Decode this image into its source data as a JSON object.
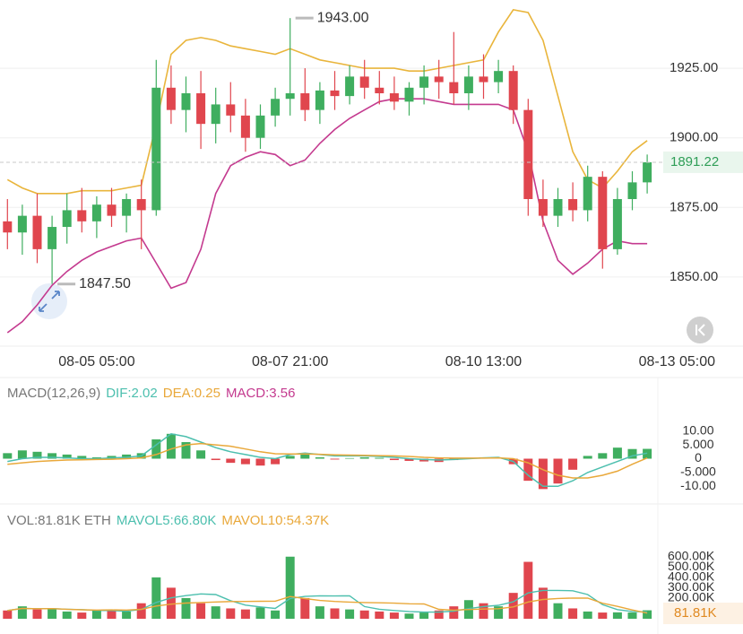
{
  "chart_data": [
    {
      "type": "candlestick",
      "categories": [
        null,
        null,
        null,
        null,
        null,
        null,
        "08-05 05:00",
        null,
        null,
        null,
        null,
        null,
        null,
        null,
        null,
        null,
        null,
        null,
        null,
        "08-07 21:00",
        null,
        null,
        null,
        null,
        null,
        null,
        null,
        null,
        null,
        null,
        null,
        null,
        "08-10 13:00",
        null,
        null,
        null,
        null,
        null,
        null,
        null,
        null,
        null,
        null,
        null,
        null,
        "08-13 05:00"
      ],
      "open": [
        1870,
        1866,
        1872,
        1860,
        1868,
        1874,
        1870,
        1876,
        1872,
        1878,
        1874,
        1918,
        1910,
        1916,
        1905,
        1912,
        1908,
        1900,
        1908,
        1914,
        1916,
        1910,
        1917,
        1915,
        1922,
        1918,
        1916,
        1913,
        1918,
        1922,
        1920,
        1916,
        1922,
        1920,
        1924,
        1910,
        1878,
        1872,
        1878,
        1874,
        1886,
        1860,
        1878,
        1884,
        null,
        null
      ],
      "high": [
        1878,
        1876,
        1880,
        1872,
        1880,
        1882,
        1879,
        1882,
        1880,
        1885,
        1928,
        1926,
        1922,
        1924,
        1918,
        1920,
        1914,
        1912,
        1918,
        1943,
        1925,
        1920,
        1924,
        1926,
        1928,
        1924,
        1922,
        1920,
        1926,
        1928,
        1938,
        1926,
        1930,
        1928,
        1926,
        1914,
        1885,
        1882,
        1884,
        1890,
        1888,
        1882,
        1888,
        1894,
        null,
        null
      ],
      "low": [
        1860,
        1858,
        1855,
        1847.5,
        1862,
        1866,
        1864,
        1868,
        1866,
        1860,
        1872,
        1905,
        1902,
        1896,
        1898,
        1902,
        1895,
        1896,
        1904,
        1908,
        1906,
        1905,
        1910,
        1912,
        1914,
        1912,
        1910,
        1908,
        1912,
        1914,
        1912,
        1910,
        1914,
        1916,
        1905,
        1872,
        1868,
        1868,
        1870,
        1870,
        1853,
        1858,
        1874,
        1880,
        null,
        null
      ],
      "close": [
        1866,
        1872,
        1860,
        1868,
        1874,
        1870,
        1876,
        1872,
        1878,
        1874,
        1918,
        1910,
        1916,
        1905,
        1912,
        1908,
        1900,
        1908,
        1914,
        1916,
        1910,
        1917,
        1915,
        1922,
        1918,
        1916,
        1913,
        1918,
        1922,
        1920,
        1916,
        1922,
        1920,
        1924,
        1910,
        1878,
        1872,
        1878,
        1874,
        1886,
        1860,
        1878,
        1884,
        1891.22,
        null,
        null
      ],
      "up_color": "#3fae5f",
      "down_color": "#e0464e",
      "bands": [
        {
          "color": "#e9b53c",
          "values": [
            1885,
            1882,
            1880,
            1880,
            1880,
            1881,
            1881,
            1881,
            1882,
            1883,
            1905,
            1930,
            1935,
            1936,
            1935,
            1933,
            1932,
            1931,
            1930,
            1932,
            1930,
            1928,
            1927,
            1926,
            1925,
            1925,
            1925,
            1924,
            1924,
            1925,
            1926,
            1927,
            1928,
            1938,
            1946,
            1945,
            1935,
            1915,
            1895,
            1885,
            1882,
            1888,
            1895,
            1899,
            null,
            null
          ]
        },
        {
          "color": "#c43a8f",
          "values": [
            1830,
            1834,
            1840,
            1847,
            1852,
            1856,
            1859,
            1861,
            1863,
            1864,
            1855,
            1846,
            1848,
            1860,
            1880,
            1890,
            1893,
            1895,
            1894,
            1890,
            1892,
            1898,
            1903,
            1907,
            1910,
            1913,
            1914,
            1914,
            1914,
            1913,
            1912,
            1912,
            1912,
            1912,
            1910,
            1895,
            1870,
            1856,
            1851,
            1855,
            1860,
            1863,
            1862,
            1862,
            null,
            null
          ]
        }
      ],
      "ylim": [
        1825.5,
        1949.5
      ],
      "yticks": [
        {
          "value": 1850,
          "label": "1850.00"
        },
        {
          "value": 1875,
          "label": "1875.00"
        },
        {
          "value": 1900,
          "label": "1900.00"
        },
        {
          "value": 1925,
          "label": "1925.00"
        }
      ],
      "grid": true,
      "high_mark": {
        "value": 1943,
        "label": "1943.00"
      },
      "low_mark": {
        "value": 1847.5,
        "label": "1847.50"
      },
      "last_price": {
        "value": 1891.22,
        "label": "1891.22"
      }
    },
    {
      "type": "macd",
      "title": "MACD(12,26,9)",
      "series": [
        {
          "name": "DIF:2.02",
          "color": "#4cbfae",
          "values": [
            -1,
            0,
            0.5,
            0.5,
            0.3,
            0,
            0,
            0.3,
            0.5,
            1,
            5,
            9,
            8,
            6,
            4,
            2.5,
            1.5,
            0.5,
            0,
            1.5,
            2,
            1.5,
            1,
            1,
            1,
            0.8,
            0.5,
            0,
            -0.3,
            -0.5,
            -0.3,
            0,
            0.3,
            0.5,
            -1,
            -6,
            -10,
            -10,
            -8,
            -5,
            -3,
            -1,
            1,
            2.02,
            null,
            null
          ]
        },
        {
          "name": "DEA:0.25",
          "color": "#e9a83a",
          "values": [
            -2,
            -1.5,
            -1,
            -0.7,
            -0.5,
            -0.4,
            -0.3,
            -0.2,
            0,
            0.3,
            1.5,
            3.5,
            5,
            5.5,
            5,
            4.5,
            3.5,
            2.5,
            1.8,
            1.7,
            1.7,
            1.6,
            1.4,
            1.3,
            1.2,
            1.1,
            1,
            0.8,
            0.5,
            0.3,
            0.2,
            0.2,
            0.2,
            0.3,
            0,
            -1.5,
            -4,
            -6,
            -7,
            -7,
            -6,
            -4.5,
            -2,
            0.25,
            null,
            null
          ]
        },
        {
          "name": "MACD:3.56",
          "color": "#c43a8f",
          "values": [
            2,
            3,
            2.5,
            2,
            1.5,
            1,
            0.5,
            1,
            1.5,
            2,
            7,
            9,
            6,
            3,
            -0.5,
            -1.5,
            -2,
            -2.5,
            -2,
            1,
            1.5,
            0.5,
            -0.3,
            0.2,
            0.5,
            0.3,
            -0.5,
            -0.8,
            -1,
            -1.2,
            -0.5,
            0.3,
            0.5,
            0.2,
            -2,
            -8,
            -11,
            -9,
            -4,
            1,
            2,
            4,
            3.5,
            3.56,
            null,
            null
          ]
        }
      ],
      "up_color": "#3fae5f",
      "down_color": "#e0464e",
      "ylim": [
        -14,
        14
      ],
      "yticks": [
        {
          "value": -10,
          "label": "-10.00"
        },
        {
          "value": -5,
          "label": "-5.000"
        },
        0,
        {
          "value": 5,
          "label": "5.000"
        },
        {
          "value": 10,
          "label": "10.00"
        }
      ]
    },
    {
      "type": "volume",
      "title": "VOL:81.81K ETH",
      "values": [
        80000,
        120000,
        90000,
        100000,
        70000,
        60000,
        80000,
        90000,
        70000,
        150000,
        400000,
        300000,
        200000,
        150000,
        120000,
        100000,
        90000,
        110000,
        80000,
        600000,
        200000,
        120000,
        100000,
        90000,
        80000,
        70000,
        60000,
        50000,
        60000,
        80000,
        120000,
        180000,
        150000,
        120000,
        250000,
        550000,
        300000,
        150000,
        100000,
        70000,
        60000,
        62000,
        60190,
        81810,
        null,
        null
      ],
      "series": [
        {
          "name": "MAVOL5:66.80K",
          "color": "#4cbfae",
          "values": [
            80000,
            100000,
            97000,
            98000,
            92000,
            88000,
            80000,
            80000,
            74000,
            90000,
            158000,
            202000,
            224000,
            240000,
            234000,
            174000,
            132000,
            114000,
            100000,
            196000,
            216000,
            222000,
            220000,
            222000,
            118000,
            92000,
            80000,
            70000,
            64000,
            64000,
            74000,
            98000,
            118000,
            130000,
            164000,
            250000,
            274000,
            274000,
            270000,
            234000,
            136000,
            88400,
            70440,
            66800,
            null,
            null
          ]
        },
        {
          "name": "MAVOL10:54.37K",
          "color": "#e9a83a",
          "values": [
            80000,
            100000,
            97000,
            98000,
            92000,
            87000,
            84000,
            86000,
            84000,
            91000,
            123000,
            141000,
            152000,
            157000,
            162000,
            166000,
            167000,
            169000,
            170000,
            215000,
            195000,
            177000,
            167000,
            161000,
            157000,
            154000,
            151000,
            145000,
            143000,
            91000,
            83000,
            89000,
            94000,
            97000,
            114000,
            162000,
            186000,
            196000,
            200000,
            199000,
            150000,
            120000,
            85000,
            54370,
            null,
            null
          ]
        }
      ],
      "last_label": {
        "value": 81810,
        "label": "81.81K"
      },
      "ylim": [
        0,
        650000
      ],
      "yticks": [
        {
          "value": 200000,
          "label": "200.00K"
        },
        {
          "value": 300000,
          "label": "300.00K"
        },
        {
          "value": 400000,
          "label": "400.00K"
        },
        {
          "value": 500000,
          "label": "500.00K"
        },
        {
          "value": 600000,
          "label": "600.00K"
        }
      ]
    }
  ]
}
